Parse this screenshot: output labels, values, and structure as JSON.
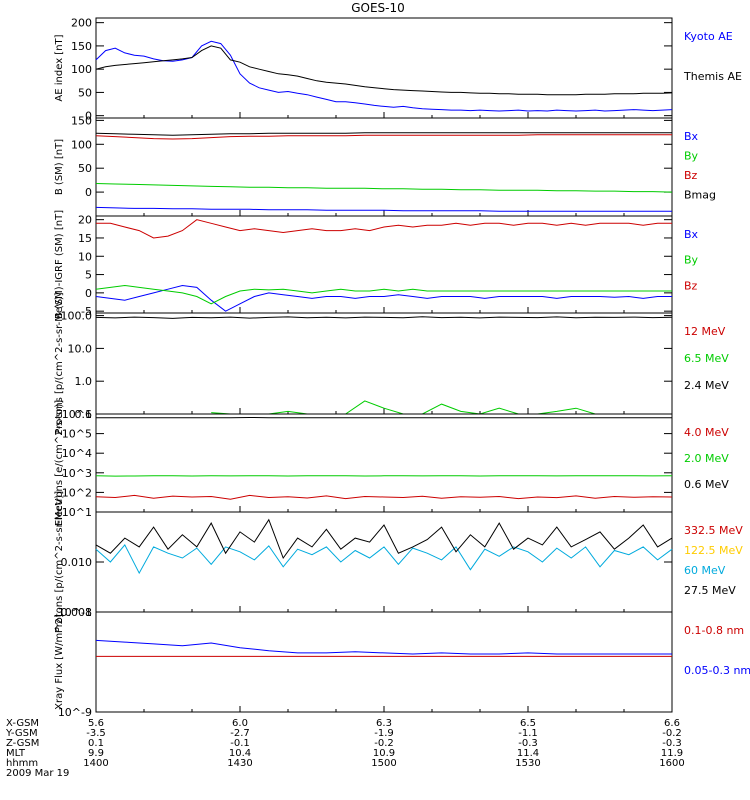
{
  "page": {
    "title": "GOES-10",
    "date": "2009 Mar 19"
  },
  "footer": {
    "rows": [
      {
        "label": "X-GSM",
        "values": [
          "5.6",
          "6.0",
          "6.3",
          "6.5",
          "6.6"
        ]
      },
      {
        "label": "Y-GSM",
        "values": [
          "-3.5",
          "-2.7",
          "-1.9",
          "-1.1",
          "-0.2"
        ]
      },
      {
        "label": "Z-GSM",
        "values": [
          "0.1",
          "-0.1",
          "-0.2",
          "-0.3",
          "-0.3"
        ]
      },
      {
        "label": "MLT",
        "values": [
          "9.9",
          "10.4",
          "10.9",
          "11.4",
          "11.9"
        ]
      },
      {
        "label": "hhmm",
        "values": [
          "1400",
          "1430",
          "1500",
          "1530",
          "1600"
        ]
      }
    ]
  },
  "chart_data": [
    {
      "type": "line",
      "ylabel": "AE index [nT]",
      "ylim": [
        -5,
        210
      ],
      "yticks": [
        "0",
        "50",
        "100",
        "150",
        "200"
      ],
      "yticks_values": [
        0,
        50,
        100,
        150,
        200
      ],
      "series": [
        {
          "name": "Kyoto AE",
          "color": "#0000ff",
          "values": [
            120,
            140,
            145,
            135,
            130,
            128,
            122,
            118,
            117,
            120,
            125,
            150,
            160,
            155,
            130,
            90,
            70,
            60,
            55,
            50,
            52,
            48,
            45,
            40,
            35,
            30,
            30,
            28,
            25,
            22,
            20,
            18,
            20,
            17,
            15,
            14,
            13,
            12,
            12,
            11,
            12,
            11,
            10,
            11,
            12,
            10,
            11,
            10,
            12,
            11,
            10,
            11,
            12,
            10,
            11,
            12,
            13,
            12,
            11,
            12,
            13
          ]
        },
        {
          "name": "Themis AE",
          "color": "#000000",
          "values": [
            100,
            105,
            108,
            110,
            112,
            114,
            116,
            118,
            120,
            122,
            125,
            140,
            150,
            145,
            120,
            115,
            105,
            100,
            95,
            90,
            88,
            85,
            80,
            75,
            72,
            70,
            68,
            65,
            62,
            60,
            58,
            56,
            55,
            54,
            53,
            52,
            51,
            50,
            50,
            49,
            48,
            48,
            47,
            47,
            46,
            46,
            46,
            45,
            45,
            45,
            45,
            46,
            46,
            46,
            47,
            47,
            47,
            48,
            48,
            48,
            49
          ]
        }
      ]
    },
    {
      "type": "line",
      "ylabel": "B (SM) [nT]",
      "ylim": [
        -50,
        155
      ],
      "yticks": [
        "0",
        "50",
        "100",
        "150"
      ],
      "yticks_values": [
        0,
        50,
        100,
        150
      ],
      "series": [
        {
          "name": "Bx",
          "color": "#0000ff",
          "values": [
            -32,
            -33,
            -34,
            -34,
            -35,
            -35,
            -36,
            -36,
            -36,
            -37,
            -37,
            -37,
            -38,
            -38,
            -38,
            -38,
            -39,
            -39,
            -39,
            -39,
            -39,
            -40,
            -40,
            -40,
            -40,
            -40,
            -40,
            -40,
            -40,
            -40,
            -40
          ]
        },
        {
          "name": "By",
          "color": "#00cc00",
          "values": [
            18,
            17,
            16,
            15,
            14,
            13,
            12,
            11,
            10,
            10,
            9,
            9,
            8,
            8,
            8,
            7,
            7,
            6,
            6,
            5,
            5,
            4,
            4,
            4,
            3,
            3,
            2,
            2,
            1,
            1,
            0
          ]
        },
        {
          "name": "Bz",
          "color": "#cc0000",
          "values": [
            118,
            116,
            114,
            112,
            111,
            112,
            114,
            116,
            117,
            117,
            118,
            118,
            118,
            118,
            119,
            119,
            119,
            119,
            119,
            119,
            119,
            119,
            119,
            120,
            120,
            120,
            120,
            120,
            120,
            120,
            120
          ]
        },
        {
          "name": "Bmag",
          "color": "#000000",
          "values": [
            123,
            122,
            121,
            120,
            119,
            120,
            121,
            122,
            122,
            123,
            123,
            123,
            123,
            123,
            124,
            124,
            124,
            124,
            124,
            124,
            124,
            124,
            124,
            124,
            124,
            124,
            124,
            124,
            124,
            124,
            124
          ]
        }
      ]
    },
    {
      "type": "line",
      "ylabel": "B (SM)-IGRF (SM) [nT]",
      "ylim": [
        -5.5,
        21
      ],
      "yticks": [
        "-5",
        "0",
        "5",
        "10",
        "15",
        "20"
      ],
      "yticks_values": [
        -5,
        0,
        5,
        10,
        15,
        20
      ],
      "series": [
        {
          "name": "Bx",
          "color": "#0000ff",
          "values": [
            -1,
            -1.5,
            -2,
            -1,
            0,
            1,
            2,
            1.5,
            -2,
            -5,
            -3,
            -1,
            0,
            -0.5,
            -1,
            -1.5,
            -1,
            -1,
            -1.5,
            -1,
            -1,
            -0.5,
            -1,
            -1.5,
            -1,
            -1,
            -1,
            -1.5,
            -1,
            -1,
            -1,
            -1,
            -1.5,
            -1,
            -1,
            -1,
            -1.2,
            -1,
            -1.5,
            -1,
            -1
          ]
        },
        {
          "name": "By",
          "color": "#00cc00",
          "values": [
            1,
            1.5,
            2,
            1.5,
            1,
            0.5,
            0,
            -1,
            -3,
            -1,
            0.5,
            1,
            0.8,
            1,
            0.5,
            0,
            0.5,
            1,
            0.5,
            0.5,
            1,
            0.5,
            1,
            0.5,
            0.5,
            0.5,
            0.5,
            0.5,
            0.5,
            0.5,
            0.5,
            0.5,
            0.5,
            0.5,
            0.5,
            0.5,
            0.5,
            0.5,
            0.5,
            0.5,
            0.5
          ]
        },
        {
          "name": "Bz",
          "color": "#cc0000",
          "values": [
            19,
            19,
            18,
            17,
            15,
            15.5,
            17,
            20,
            19,
            18,
            17,
            17.5,
            17,
            16.5,
            17,
            17.5,
            17,
            17,
            17.5,
            17,
            18,
            18.5,
            18,
            18.5,
            18.5,
            19,
            18.5,
            19,
            19,
            18.5,
            19,
            19,
            18.5,
            19,
            18.5,
            19,
            19,
            19,
            18.5,
            19,
            19
          ]
        }
      ]
    },
    {
      "type": "line",
      "ylabel": "Protons [p/(cm^2-s-sr-MeV)]",
      "ylog": true,
      "ylim": [
        0.1,
        120
      ],
      "yticks": [
        "0.1",
        "1.0",
        "10.0",
        "100.0"
      ],
      "yticks_values": [
        0.1,
        1,
        10,
        100
      ],
      "series": [
        {
          "name": "12 MeV",
          "color": "#cc0000",
          "values": [
            null,
            null,
            null,
            null,
            null,
            null,
            null,
            null,
            null,
            null,
            null,
            null,
            null,
            null,
            null,
            null,
            null,
            null,
            null,
            null,
            null,
            null,
            null,
            null,
            null,
            null,
            null,
            null,
            null,
            null,
            null
          ]
        },
        {
          "name": "6.5 MeV",
          "color": "#00cc00",
          "values": [
            null,
            null,
            null,
            null,
            null,
            null,
            0.11,
            0.1,
            0.1,
            0.1,
            0.12,
            0.1,
            0.1,
            0.1,
            0.25,
            0.15,
            0.1,
            0.1,
            0.2,
            0.12,
            0.1,
            0.15,
            0.1,
            0.1,
            0.12,
            0.15,
            0.1,
            0.1,
            0.1,
            0.1,
            0.1
          ]
        },
        {
          "name": "2.4 MeV",
          "color": "#000000",
          "values": [
            88,
            85,
            90,
            87,
            82,
            88,
            86,
            90,
            84,
            88,
            91,
            86,
            89,
            85,
            90,
            88,
            86,
            92,
            87,
            89,
            85,
            90,
            88,
            87,
            91,
            86,
            89,
            88,
            90,
            87,
            89
          ]
        }
      ]
    },
    {
      "type": "line",
      "ylabel": "Electrons [e/(cm^2-s-sr)]",
      "ylog": true,
      "ylim": [
        10,
        1000000
      ],
      "yticks": [
        "10^1",
        "10^2",
        "10^3",
        "10^4",
        "10^5",
        "10^6"
      ],
      "yticks_values": [
        10,
        100,
        1000,
        10000,
        100000,
        1000000
      ],
      "series": [
        {
          "name": "4.0 MeV",
          "color": "#cc0000",
          "values": [
            60,
            55,
            70,
            50,
            65,
            58,
            62,
            45,
            70,
            55,
            60,
            52,
            66,
            48,
            62,
            58,
            55,
            64,
            50,
            60,
            56,
            62,
            48,
            58,
            54,
            66,
            50,
            62,
            56,
            60,
            58
          ]
        },
        {
          "name": "2.0 MeV",
          "color": "#00cc00",
          "values": [
            700,
            680,
            690,
            700,
            710,
            690,
            700,
            695,
            705,
            700,
            690,
            700,
            710,
            700,
            690,
            700,
            705,
            695,
            700,
            700,
            690,
            700,
            705,
            700,
            695,
            700,
            700,
            705,
            700,
            695,
            700
          ]
        },
        {
          "name": "0.6 MeV",
          "color": "#000000",
          "values": [
            650000,
            650000,
            640000,
            650000,
            650000,
            640000,
            650000,
            650000,
            660000,
            650000,
            650000,
            650000,
            640000,
            650000,
            650000,
            650000,
            650000,
            650000,
            650000,
            650000,
            650000,
            650000,
            650000,
            650000,
            650000,
            650000,
            650000,
            650000,
            650000,
            650000,
            650000
          ]
        }
      ]
    },
    {
      "type": "line",
      "ylabel": "Protons [p/(cm^2-s-sr-MeV)]",
      "ylog": true,
      "ylim": [
        0.001,
        0.1
      ],
      "yticks": [
        "0.001",
        "0.010"
      ],
      "yticks_values": [
        0.001,
        0.01
      ],
      "series": [
        {
          "name": "332.5 MeV",
          "color": "#cc0000",
          "values": []
        },
        {
          "name": "122.5 MeV",
          "color": "#ffcc00",
          "values": []
        },
        {
          "name": "60 MeV",
          "color": "#00aadd",
          "values": [
            0.018,
            0.01,
            0.022,
            0.006,
            0.02,
            0.015,
            0.012,
            0.019,
            0.009,
            0.02,
            0.016,
            0.011,
            0.021,
            0.008,
            0.018,
            0.014,
            0.02,
            0.01,
            0.017,
            0.012,
            0.02,
            0.009,
            0.019,
            0.015,
            0.011,
            0.02,
            0.007,
            0.018,
            0.013,
            0.02,
            0.016,
            0.01,
            0.019,
            0.012,
            0.02,
            0.008,
            0.017,
            0.014,
            0.02,
            0.011,
            0.018
          ]
        },
        {
          "name": "27.5 MeV",
          "color": "#000000",
          "values": [
            0.022,
            0.015,
            0.03,
            0.02,
            0.05,
            0.018,
            0.035,
            0.02,
            0.06,
            0.015,
            0.04,
            0.025,
            0.07,
            0.012,
            0.03,
            0.02,
            0.045,
            0.018,
            0.03,
            0.025,
            0.055,
            0.015,
            0.02,
            0.028,
            0.05,
            0.016,
            0.035,
            0.02,
            0.06,
            0.018,
            0.03,
            0.022,
            0.05,
            0.02,
            0.028,
            0.04,
            0.018,
            0.03,
            0.055,
            0.02,
            0.03
          ]
        }
      ]
    },
    {
      "type": "line",
      "ylabel": "Xray Flux [W/m^2]",
      "ylog": true,
      "ylim": [
        1e-09,
        1e-08
      ],
      "yticks": [
        "10^-9",
        "10^-8"
      ],
      "yticks_values": [
        1e-09,
        1e-08
      ],
      "series": [
        {
          "name": "0.1-0.8 nm",
          "color": "#cc0000",
          "values": [
            3.6e-09,
            3.6e-09,
            3.6e-09,
            3.6e-09,
            3.6e-09,
            3.6e-09,
            3.6e-09,
            3.6e-09,
            3.6e-09,
            3.6e-09,
            3.6e-09,
            3.6e-09,
            3.6e-09,
            3.6e-09,
            3.6e-09,
            3.6e-09,
            3.6e-09,
            3.6e-09,
            3.6e-09,
            3.6e-09,
            3.6e-09
          ]
        },
        {
          "name": "0.05-0.3 nm",
          "color": "#0000ff",
          "values": [
            5.2e-09,
            5e-09,
            4.8e-09,
            4.6e-09,
            4.9e-09,
            4.4e-09,
            4.1e-09,
            3.9e-09,
            3.9e-09,
            4e-09,
            3.9e-09,
            3.8e-09,
            3.9e-09,
            3.8e-09,
            3.8e-09,
            3.9e-09,
            3.8e-09,
            3.8e-09,
            3.8e-09,
            3.8e-09,
            3.8e-09
          ]
        }
      ]
    }
  ]
}
